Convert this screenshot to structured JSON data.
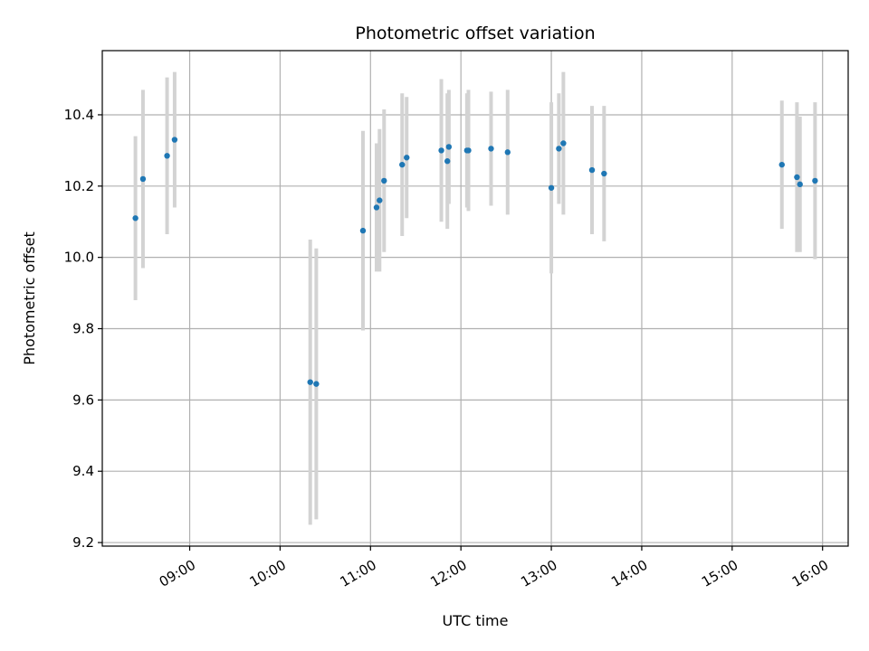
{
  "chart_data": {
    "type": "scatter",
    "title": "Photometric offset variation",
    "xlabel": "UTC time",
    "ylabel": "Photometric offset",
    "x_ticks": [
      "09:00",
      "10:00",
      "11:00",
      "12:00",
      "13:00",
      "14:00",
      "15:00",
      "16:00"
    ],
    "y_ticks": [
      "9.2",
      "9.4",
      "9.6",
      "9.8",
      "10.0",
      "10.2",
      "10.4"
    ],
    "xlim": [
      "08:02",
      "16:17"
    ],
    "ylim": [
      9.19,
      10.58
    ],
    "grid": true,
    "colors": {
      "point": "#1f77b4",
      "errorbar": "#d3d3d3",
      "grid": "#b0b0b0"
    },
    "points": [
      {
        "t": "08:24",
        "y": 10.11,
        "err": 0.23
      },
      {
        "t": "08:29",
        "y": 10.22,
        "err": 0.25
      },
      {
        "t": "08:45",
        "y": 10.285,
        "err": 0.22
      },
      {
        "t": "08:50",
        "y": 10.33,
        "err": 0.19
      },
      {
        "t": "10:20",
        "y": 9.65,
        "err": 0.4
      },
      {
        "t": "10:24",
        "y": 9.645,
        "err": 0.38
      },
      {
        "t": "10:55",
        "y": 10.075,
        "err": 0.28
      },
      {
        "t": "11:04",
        "y": 10.14,
        "err": 0.18
      },
      {
        "t": "11:06",
        "y": 10.16,
        "err": 0.2
      },
      {
        "t": "11:09",
        "y": 10.215,
        "err": 0.2
      },
      {
        "t": "11:21",
        "y": 10.26,
        "err": 0.2
      },
      {
        "t": "11:24",
        "y": 10.28,
        "err": 0.17
      },
      {
        "t": "11:47",
        "y": 10.3,
        "err": 0.2
      },
      {
        "t": "11:51",
        "y": 10.27,
        "err": 0.19
      },
      {
        "t": "11:52",
        "y": 10.31,
        "err": 0.16
      },
      {
        "t": "12:04",
        "y": 10.3,
        "err": 0.16
      },
      {
        "t": "12:05",
        "y": 10.3,
        "err": 0.17
      },
      {
        "t": "12:20",
        "y": 10.305,
        "err": 0.16
      },
      {
        "t": "12:31",
        "y": 10.295,
        "err": 0.175
      },
      {
        "t": "13:00",
        "y": 10.195,
        "err": 0.24
      },
      {
        "t": "13:05",
        "y": 10.305,
        "err": 0.155
      },
      {
        "t": "13:08",
        "y": 10.32,
        "err": 0.2
      },
      {
        "t": "13:27",
        "y": 10.245,
        "err": 0.18
      },
      {
        "t": "13:35",
        "y": 10.235,
        "err": 0.19
      },
      {
        "t": "15:33",
        "y": 10.26,
        "err": 0.18
      },
      {
        "t": "15:43",
        "y": 10.225,
        "err": 0.21
      },
      {
        "t": "15:45",
        "y": 10.205,
        "err": 0.19
      },
      {
        "t": "15:55",
        "y": 10.215,
        "err": 0.22
      }
    ]
  }
}
